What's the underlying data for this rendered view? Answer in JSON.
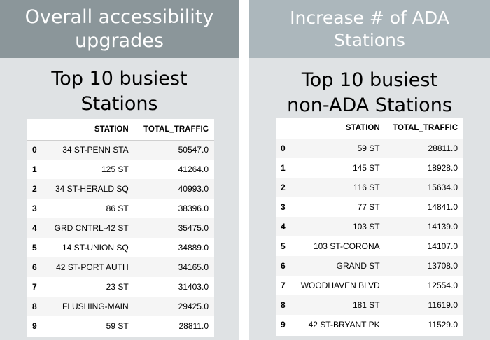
{
  "left": {
    "banner": "Overall accessibility\nupgrades",
    "subtitle": "Top 10 busiest\nStations",
    "columns": [
      "",
      "STATION",
      "TOTAL_TRAFFIC"
    ],
    "rows": [
      {
        "idx": "0",
        "station": "34 ST-PENN STA",
        "traffic": "50547.0"
      },
      {
        "idx": "1",
        "station": "125 ST",
        "traffic": "41264.0"
      },
      {
        "idx": "2",
        "station": "34 ST-HERALD SQ",
        "traffic": "40993.0"
      },
      {
        "idx": "3",
        "station": "86 ST",
        "traffic": "38396.0"
      },
      {
        "idx": "4",
        "station": "GRD CNTRL-42 ST",
        "traffic": "35475.0"
      },
      {
        "idx": "5",
        "station": "14 ST-UNION SQ",
        "traffic": "34889.0"
      },
      {
        "idx": "6",
        "station": "42 ST-PORT AUTH",
        "traffic": "34165.0"
      },
      {
        "idx": "7",
        "station": "23 ST",
        "traffic": "31403.0"
      },
      {
        "idx": "8",
        "station": "FLUSHING-MAIN",
        "traffic": "29425.0"
      },
      {
        "idx": "9",
        "station": "59 ST",
        "traffic": "28811.0"
      }
    ]
  },
  "right": {
    "banner": "Increase # of ADA\nStations",
    "subtitle": "Top 10 busiest\nnon-ADA Stations",
    "columns": [
      "",
      "STATION",
      "TOTAL_TRAFFIC"
    ],
    "rows": [
      {
        "idx": "0",
        "station": "59 ST",
        "traffic": "28811.0"
      },
      {
        "idx": "1",
        "station": "145 ST",
        "traffic": "18928.0"
      },
      {
        "idx": "2",
        "station": "116 ST",
        "traffic": "15634.0"
      },
      {
        "idx": "3",
        "station": "77 ST",
        "traffic": "14841.0"
      },
      {
        "idx": "4",
        "station": "103 ST",
        "traffic": "14139.0"
      },
      {
        "idx": "5",
        "station": "103 ST-CORONA",
        "traffic": "14107.0"
      },
      {
        "idx": "6",
        "station": "GRAND ST",
        "traffic": "13708.0"
      },
      {
        "idx": "7",
        "station": "WOODHAVEN BLVD",
        "traffic": "12554.0"
      },
      {
        "idx": "8",
        "station": "181 ST",
        "traffic": "11619.0"
      },
      {
        "idx": "9",
        "station": "42 ST-BRYANT PK",
        "traffic": "11529.0"
      }
    ]
  }
}
